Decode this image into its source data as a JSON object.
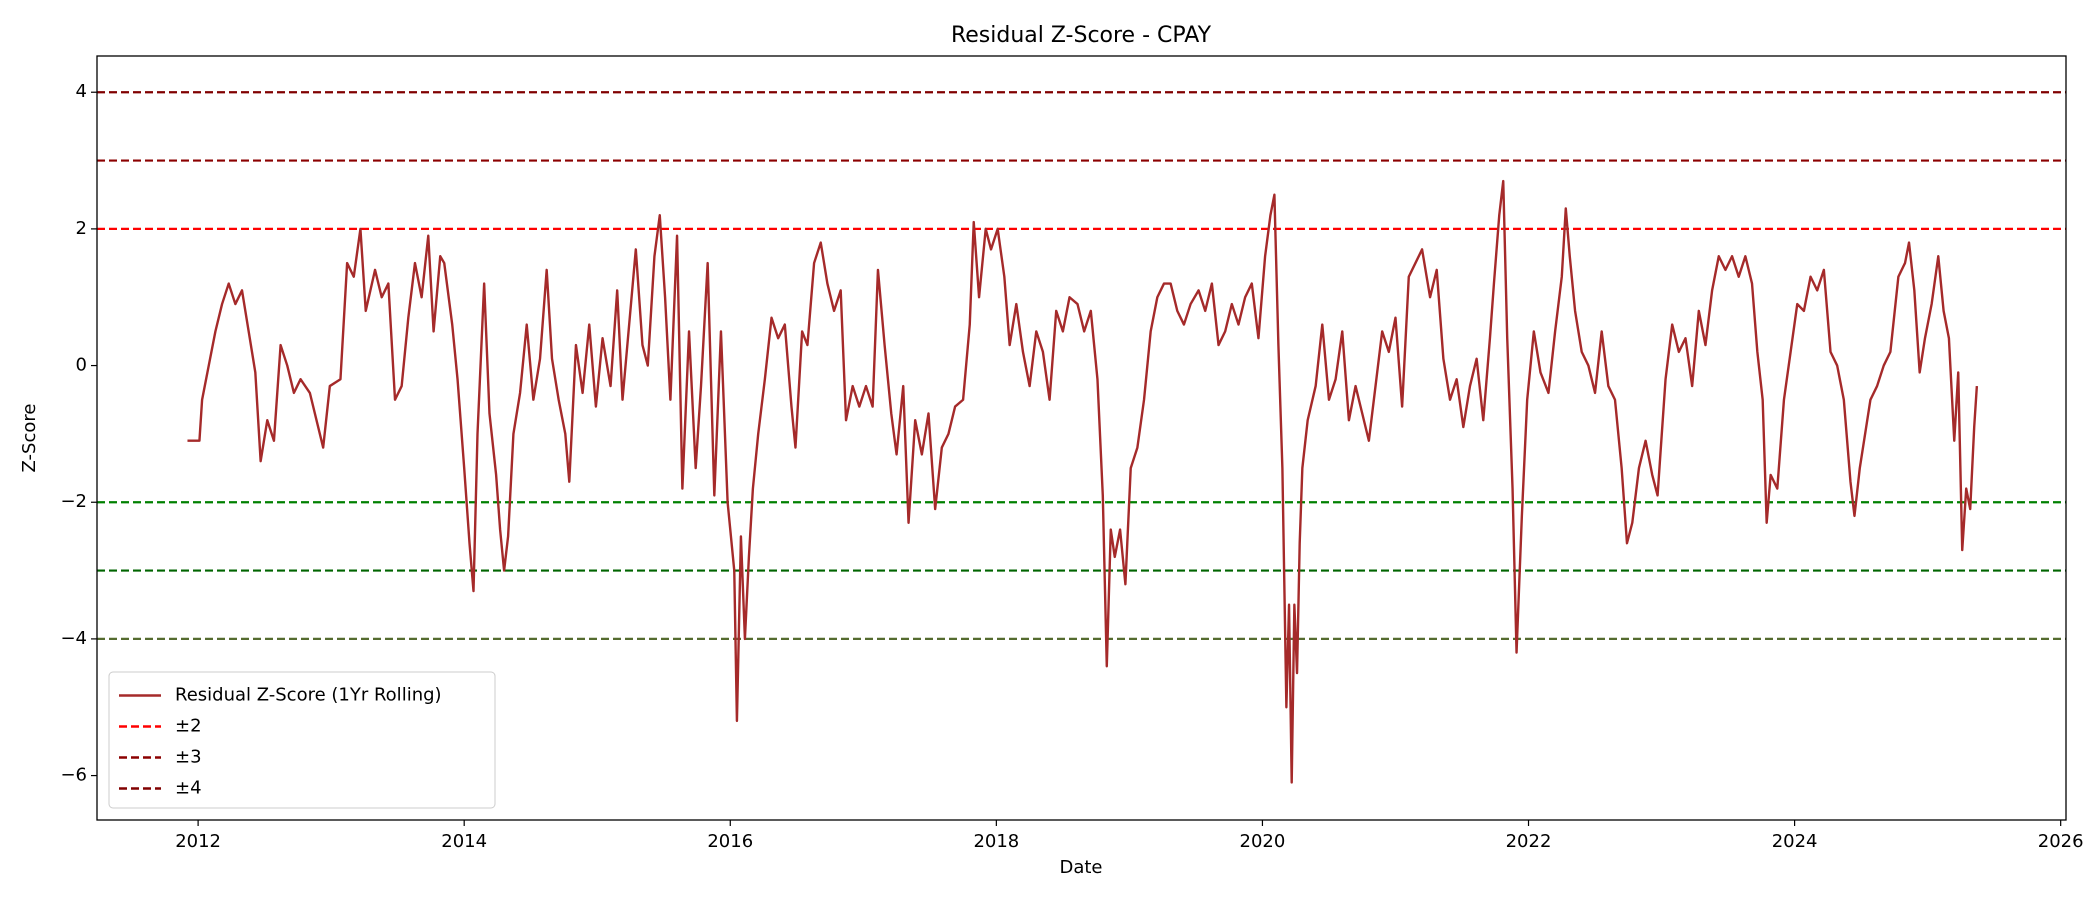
{
  "chart_data": {
    "type": "line",
    "title": "Residual Z-Score - CPAY",
    "x_label": "Date",
    "y_label": "Z-Score",
    "xlim": [
      2011.24,
      2026.04
    ],
    "ylim": [
      -6.65,
      4.53
    ],
    "xticks": [
      2012,
      2014,
      2016,
      2018,
      2020,
      2022,
      2024,
      2026
    ],
    "yticks": [
      {
        "value": -6,
        "label": "−6"
      },
      {
        "value": -4,
        "label": "−4"
      },
      {
        "value": -2,
        "label": "−2"
      },
      0,
      2,
      4
    ],
    "legend": "lower left",
    "x": [
      2011.92,
      2012.01,
      2012.03,
      2012.08,
      2012.13,
      2012.18,
      2012.23,
      2012.28,
      2012.33,
      2012.38,
      2012.43,
      2012.47,
      2012.52,
      2012.57,
      2012.62,
      2012.67,
      2012.72,
      2012.77,
      2012.84,
      2012.94,
      2012.99,
      2013.07,
      2013.12,
      2013.17,
      2013.22,
      2013.26,
      2013.33,
      2013.38,
      2013.43,
      2013.48,
      2013.53,
      2013.58,
      2013.63,
      2013.68,
      2013.73,
      2013.77,
      2013.82,
      2013.85,
      2013.91,
      2013.95,
      2014.0,
      2014.04,
      2014.07,
      2014.1,
      2014.15,
      2014.19,
      2014.24,
      2014.27,
      2014.3,
      2014.33,
      2014.37,
      2014.42,
      2014.47,
      2014.52,
      2014.57,
      2014.62,
      2014.66,
      2014.71,
      2014.76,
      2014.79,
      2014.84,
      2014.89,
      2014.94,
      2014.99,
      2015.04,
      2015.1,
      2015.15,
      2015.19,
      2015.24,
      2015.29,
      2015.34,
      2015.38,
      2015.43,
      2015.47,
      2015.51,
      2015.55,
      2015.6,
      2015.64,
      2015.69,
      2015.74,
      2015.78,
      2015.83,
      2015.88,
      2015.93,
      2015.98,
      2016.03,
      2016.05,
      2016.08,
      2016.11,
      2016.14,
      2016.17,
      2016.21,
      2016.26,
      2016.31,
      2016.36,
      2016.41,
      2016.46,
      2016.49,
      2016.54,
      2016.58,
      2016.63,
      2016.68,
      2016.73,
      2016.78,
      2016.83,
      2016.87,
      2016.92,
      2016.97,
      2017.02,
      2017.07,
      2017.11,
      2017.16,
      2017.21,
      2017.25,
      2017.3,
      2017.34,
      2017.39,
      2017.44,
      2017.49,
      2017.54,
      2017.59,
      2017.64,
      2017.69,
      2017.75,
      2017.8,
      2017.83,
      2017.87,
      2017.92,
      2017.96,
      2018.01,
      2018.06,
      2018.1,
      2018.15,
      2018.2,
      2018.25,
      2018.3,
      2018.35,
      2018.4,
      2018.45,
      2018.5,
      2018.55,
      2018.61,
      2018.66,
      2018.71,
      2018.76,
      2018.8,
      2018.83,
      2018.86,
      2018.89,
      2018.93,
      2018.97,
      2019.01,
      2019.06,
      2019.11,
      2019.16,
      2019.21,
      2019.26,
      2019.31,
      2019.36,
      2019.41,
      2019.46,
      2019.52,
      2019.57,
      2019.62,
      2019.67,
      2019.72,
      2019.77,
      2019.82,
      2019.87,
      2019.92,
      2019.97,
      2020.02,
      2020.06,
      2020.09,
      2020.12,
      2020.15,
      2020.18,
      2020.2,
      2020.22,
      2020.24,
      2020.26,
      2020.28,
      2020.3,
      2020.34,
      2020.4,
      2020.45,
      2020.5,
      2020.55,
      2020.6,
      2020.65,
      2020.7,
      2020.75,
      2020.8,
      2020.85,
      2020.9,
      2020.95,
      2021.0,
      2021.05,
      2021.1,
      2021.15,
      2021.2,
      2021.26,
      2021.31,
      2021.36,
      2021.41,
      2021.46,
      2021.51,
      2021.56,
      2021.61,
      2021.66,
      2021.71,
      2021.74,
      2021.78,
      2021.81,
      2021.84,
      2021.88,
      2021.91,
      2021.95,
      2021.99,
      2022.04,
      2022.09,
      2022.15,
      2022.2,
      2022.25,
      2022.28,
      2022.31,
      2022.35,
      2022.4,
      2022.45,
      2022.5,
      2022.55,
      2022.6,
      2022.65,
      2022.7,
      2022.74,
      2022.78,
      2022.83,
      2022.88,
      2022.93,
      2022.97,
      2023.03,
      2023.08,
      2023.13,
      2023.18,
      2023.23,
      2023.28,
      2023.33,
      2023.38,
      2023.43,
      2023.48,
      2023.53,
      2023.58,
      2023.63,
      2023.68,
      2023.72,
      2023.76,
      2023.79,
      2023.82,
      2023.87,
      2023.92,
      2023.97,
      2024.02,
      2024.07,
      2024.12,
      2024.17,
      2024.22,
      2024.27,
      2024.32,
      2024.37,
      2024.42,
      2024.45,
      2024.49,
      2024.53,
      2024.57,
      2024.62,
      2024.67,
      2024.72,
      2024.78,
      2024.83,
      2024.86,
      2024.9,
      2024.94,
      2024.98,
      2025.03,
      2025.08,
      2025.12,
      2025.16,
      2025.2,
      2025.23,
      2025.26,
      2025.29,
      2025.32,
      2025.35,
      2025.37
    ],
    "series": [
      {
        "name": "Residual Z-Score (1Yr Rolling)",
        "color": "#a52a2a",
        "values": [
          -1.1,
          -1.1,
          -0.5,
          0.0,
          0.5,
          0.9,
          1.2,
          0.9,
          1.1,
          0.5,
          -0.1,
          -1.4,
          -0.8,
          -1.1,
          0.3,
          0.0,
          -0.4,
          -0.2,
          -0.4,
          -1.2,
          -0.3,
          -0.2,
          1.5,
          1.3,
          2.0,
          0.8,
          1.4,
          1.0,
          1.2,
          -0.5,
          -0.3,
          0.7,
          1.5,
          1.0,
          1.9,
          0.5,
          1.6,
          1.5,
          0.6,
          -0.2,
          -1.5,
          -2.6,
          -3.3,
          -1.0,
          1.2,
          -0.7,
          -1.6,
          -2.4,
          -3.0,
          -2.5,
          -1.0,
          -0.4,
          0.6,
          -0.5,
          0.1,
          1.4,
          0.1,
          -0.5,
          -1.0,
          -1.7,
          0.3,
          -0.4,
          0.6,
          -0.6,
          0.4,
          -0.3,
          1.1,
          -0.5,
          0.6,
          1.7,
          0.3,
          0.0,
          1.6,
          2.2,
          1.0,
          -0.5,
          1.9,
          -1.8,
          0.5,
          -1.5,
          -0.3,
          1.5,
          -1.9,
          0.5,
          -2.0,
          -3.0,
          -5.2,
          -2.5,
          -4.0,
          -2.8,
          -1.8,
          -1.0,
          -0.2,
          0.7,
          0.4,
          0.6,
          -0.6,
          -1.2,
          0.5,
          0.3,
          1.5,
          1.8,
          1.2,
          0.8,
          1.1,
          -0.8,
          -0.3,
          -0.6,
          -0.3,
          -0.6,
          1.4,
          0.3,
          -0.7,
          -1.3,
          -0.3,
          -2.3,
          -0.8,
          -1.3,
          -0.7,
          -2.1,
          -1.2,
          -1.0,
          -0.6,
          -0.5,
          0.6,
          2.1,
          1.0,
          2.0,
          1.7,
          2.0,
          1.3,
          0.3,
          0.9,
          0.2,
          -0.3,
          0.5,
          0.2,
          -0.5,
          0.8,
          0.5,
          1.0,
          0.9,
          0.5,
          0.8,
          -0.2,
          -1.9,
          -4.4,
          -2.4,
          -2.8,
          -2.4,
          -3.2,
          -1.5,
          -1.2,
          -0.5,
          0.5,
          1.0,
          1.2,
          1.2,
          0.8,
          0.6,
          0.9,
          1.1,
          0.8,
          1.2,
          0.3,
          0.5,
          0.9,
          0.6,
          1.0,
          1.2,
          0.4,
          1.6,
          2.2,
          2.5,
          0.3,
          -1.5,
          -5.0,
          -3.5,
          -6.1,
          -3.5,
          -4.5,
          -2.6,
          -1.5,
          -0.8,
          -0.3,
          0.6,
          -0.5,
          -0.2,
          0.5,
          -0.8,
          -0.3,
          -0.7,
          -1.1,
          -0.3,
          0.5,
          0.2,
          0.7,
          -0.6,
          1.3,
          1.5,
          1.7,
          1.0,
          1.4,
          0.1,
          -0.5,
          -0.2,
          -0.9,
          -0.3,
          0.1,
          -0.8,
          0.4,
          1.2,
          2.2,
          2.7,
          0.4,
          -1.8,
          -4.2,
          -2.2,
          -0.5,
          0.5,
          -0.1,
          -0.4,
          0.5,
          1.3,
          2.3,
          1.6,
          0.8,
          0.2,
          0.0,
          -0.4,
          0.5,
          -0.3,
          -0.5,
          -1.5,
          -2.6,
          -2.3,
          -1.5,
          -1.1,
          -1.6,
          -1.9,
          -0.2,
          0.6,
          0.2,
          0.4,
          -0.3,
          0.8,
          0.3,
          1.1,
          1.6,
          1.4,
          1.6,
          1.3,
          1.6,
          1.2,
          0.2,
          -0.5,
          -2.3,
          -1.6,
          -1.8,
          -0.5,
          0.2,
          0.9,
          0.8,
          1.3,
          1.1,
          1.4,
          0.2,
          0.0,
          -0.5,
          -1.7,
          -2.2,
          -1.5,
          -1.0,
          -0.5,
          -0.3,
          0.0,
          0.2,
          1.3,
          1.5,
          1.8,
          1.1,
          -0.1,
          0.4,
          0.9,
          1.6,
          0.8,
          0.4,
          -1.1,
          -0.1,
          -2.7,
          -1.8,
          -2.1,
          -0.9,
          -0.3
        ]
      }
    ],
    "reference_lines": [
      {
        "name": "±2",
        "y": [
          2,
          -2
        ],
        "colors": [
          "#ff0000",
          "#008000"
        ]
      },
      {
        "name": "±3",
        "y": [
          3,
          -3
        ],
        "colors": [
          "#8b0000",
          "#006400"
        ]
      },
      {
        "name": "±4",
        "y": [
          4,
          -4
        ],
        "colors": [
          "#800000",
          "#556b2f"
        ]
      }
    ]
  }
}
